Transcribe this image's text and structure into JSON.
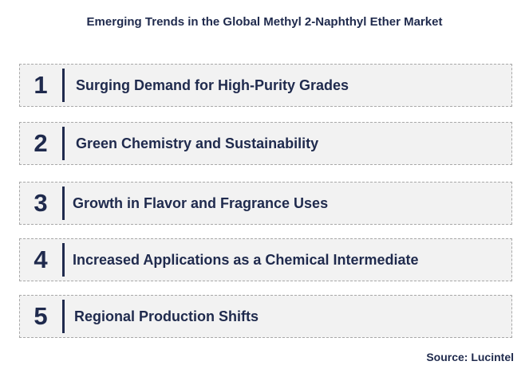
{
  "title": "Emerging Trends in the Global Methyl 2-Naphthyl Ether Market",
  "trends": [
    {
      "number": "1",
      "label": "Surging Demand for High-Purity Grades"
    },
    {
      "number": "2",
      "label": "Green Chemistry and Sustainability"
    },
    {
      "number": "3",
      "label": "Growth in Flavor and Fragrance Uses"
    },
    {
      "number": "4",
      "label": "Increased Applications as a Chemical Intermediate"
    },
    {
      "number": "5",
      "label": "Regional Production Shifts"
    }
  ],
  "source": "Source: Lucintel",
  "colors": {
    "text": "#1f2a4d",
    "box_fill": "#f2f2f2",
    "box_border": "#a9a9a9"
  }
}
